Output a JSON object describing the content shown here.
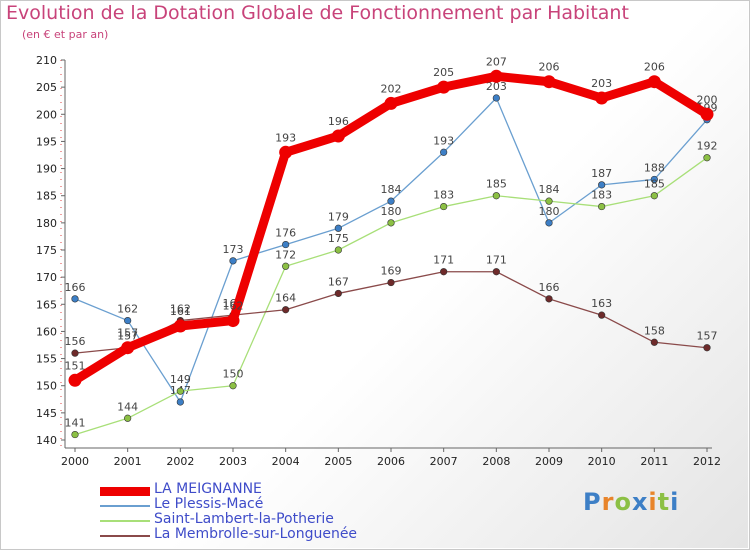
{
  "title": "Evolution de la Dotation Globale de Fonctionnement par Habitant",
  "subtitle": "(en € et par an)",
  "logo": {
    "text": "Proxiti",
    "letters": [
      "P",
      "r",
      "o",
      "x",
      "i",
      "t",
      "i"
    ],
    "colors": [
      "#3d7fc6",
      "#e8842a",
      "#8cc044",
      "#3d7fc6",
      "#e8842a",
      "#8cc044",
      "#3d7fc6"
    ]
  },
  "chart_data": {
    "type": "line",
    "title": "Evolution de la Dotation Globale de Fonctionnement par Habitant",
    "subtitle": "(en € et par an)",
    "x": [
      "2000",
      "2001",
      "2002",
      "2003",
      "2004",
      "2005",
      "2006",
      "2007",
      "2008",
      "2009",
      "2010",
      "2011",
      "2012"
    ],
    "ylim": [
      140,
      210
    ],
    "yticks": [
      140,
      145,
      150,
      155,
      160,
      165,
      170,
      175,
      180,
      185,
      190,
      195,
      200,
      205,
      210
    ],
    "grid": false,
    "legend_position": "bottom-left",
    "series": [
      {
        "name": "Le Plessis-Macé",
        "color": "#6a9fd0",
        "marker": "#3d7fc6",
        "style": "thin",
        "values": [
          166,
          162,
          147,
          173,
          176,
          179,
          184,
          193,
          203,
          180,
          187,
          188,
          199
        ]
      },
      {
        "name": "Saint-Lambert-la-Potherie",
        "color": "#a8df78",
        "marker": "#8cc044",
        "style": "thin",
        "values": [
          141,
          144,
          149,
          150,
          172,
          175,
          180,
          183,
          185,
          184,
          183,
          185,
          192
        ]
      },
      {
        "name": "La Membrolle-sur-Longuenée",
        "color": "#8a4a4a",
        "marker": "#6e2a2a",
        "style": "thin",
        "values": [
          156,
          157,
          162,
          163,
          164,
          167,
          169,
          171,
          171,
          166,
          163,
          158,
          157
        ]
      },
      {
        "name": "LA MEIGNANNE",
        "color": "#ee0000",
        "marker": "#ee0000",
        "style": "thick",
        "values": [
          151,
          157,
          161,
          162,
          193,
          196,
          202,
          205,
          207,
          206,
          203,
          206,
          200
        ]
      }
    ],
    "legend_order": [
      "LA MEIGNANNE",
      "Le Plessis-Macé",
      "Saint-Lambert-la-Potherie",
      "La Membrolle-sur-Longuenée"
    ]
  }
}
